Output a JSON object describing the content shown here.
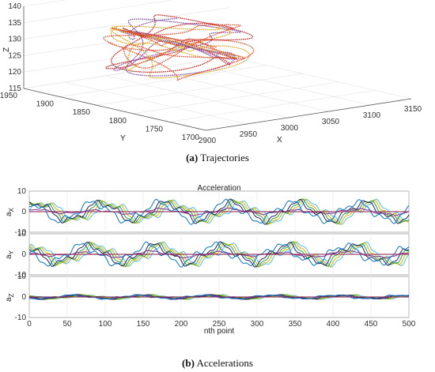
{
  "figure": {
    "caption_a_label": "(a)",
    "caption_a_text": " Trajectories",
    "caption_b_label": "(b)",
    "caption_b_text": " Accelerations"
  },
  "chart_data": [
    {
      "type": "line",
      "subtype": "3d-line",
      "title": "",
      "xlabel": "X",
      "ylabel": "Y",
      "zlabel": "Z",
      "xlim": [
        2900,
        3150
      ],
      "ylim": [
        1700,
        1950
      ],
      "zlim": [
        115,
        140
      ],
      "x_ticks": [
        "2900",
        "2950",
        "3000",
        "3050",
        "3100",
        "3150"
      ],
      "y_ticks": [
        "1700",
        "1750",
        "1800",
        "1850",
        "1900",
        "1950"
      ],
      "z_ticks": [
        "115",
        "120",
        "125",
        "130",
        "135",
        "140"
      ],
      "grid": true,
      "series_colors": [
        "#c01010",
        "#7b3fa0",
        "#d4a017",
        "#e04020"
      ],
      "trajectory_extent": {
        "x": [
          2920,
          3060
        ],
        "y": [
          1780,
          1900
        ],
        "z": [
          121,
          139
        ]
      }
    },
    {
      "type": "line",
      "title": "Acceleration",
      "xlabel": "nth point",
      "xlim": [
        0,
        500
      ],
      "x_ticks": [
        "0",
        "50",
        "100",
        "150",
        "200",
        "250",
        "300",
        "350",
        "400",
        "450",
        "500"
      ],
      "grid": true,
      "series_colors": [
        "#4dbeee",
        "#d4b106",
        "#2a9d2a",
        "#202060",
        "#7e2f8e",
        "#0072bd"
      ],
      "panels": [
        {
          "ylabel_main": "a",
          "ylabel_sub": "X",
          "ylim": [
            -10,
            10
          ],
          "y_ticks": [
            "10",
            "0",
            "-10"
          ],
          "amplitude": 5
        },
        {
          "ylabel_main": "a",
          "ylabel_sub": "Y",
          "ylim": [
            -10,
            10
          ],
          "y_ticks": [
            "10",
            "0",
            "-10"
          ],
          "amplitude": 5
        },
        {
          "ylabel_main": "a",
          "ylabel_sub": "Z",
          "ylim": [
            -10,
            10
          ],
          "y_ticks": [
            "10",
            "0",
            "-10"
          ],
          "amplitude": 1
        }
      ]
    }
  ]
}
